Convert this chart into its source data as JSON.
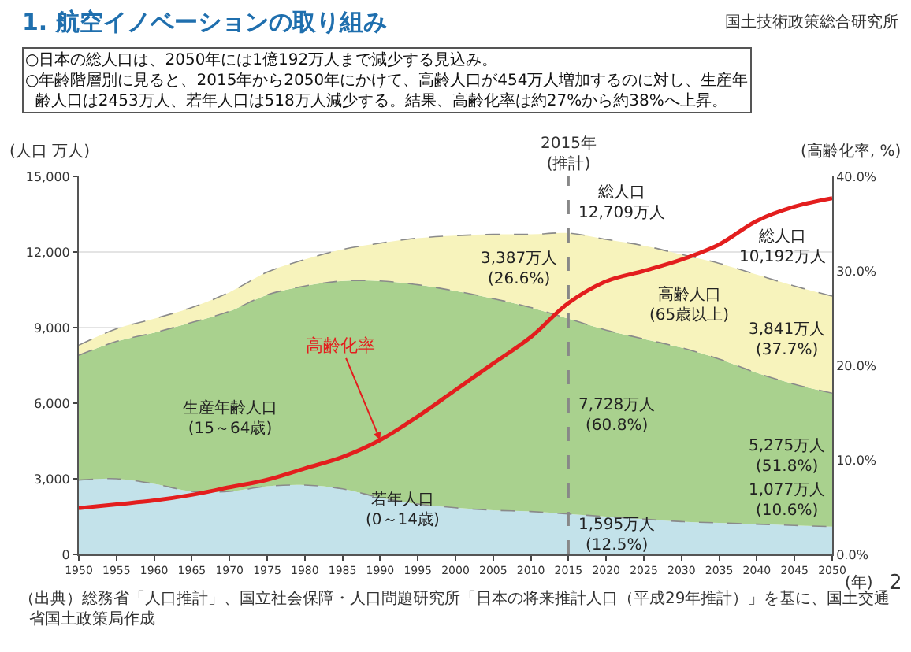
{
  "chart_data": {
    "type": "area",
    "stacked": true,
    "title": "1. 航空イノベーションの取り組み",
    "subtitle": "○日本の総人口は、2050年には1億192万人まで減少する見込み。\n○年齢階層別に見ると、2015年から2050年にかけて、高齢人口が454万人増加するのに対し、生産年齢人口は2453万人、若年人口は518万人減少する。結果、高齢化率は約27%から約38%へ上昇。",
    "ylabel": "(人口 万人)",
    "y2label": "(高齢化率, %)",
    "xlabel": "(年)",
    "x": [
      1950,
      1955,
      1960,
      1965,
      1970,
      1975,
      1980,
      1985,
      1990,
      1995,
      2000,
      2005,
      2010,
      2015,
      2020,
      2025,
      2030,
      2035,
      2040,
      2045,
      2050
    ],
    "series": [
      {
        "name": "若年人口\n(0～14歳)",
        "color": "#c3e2ea",
        "values": [
          2950,
          3000,
          2800,
          2500,
          2500,
          2700,
          2750,
          2600,
          2250,
          2000,
          1850,
          1750,
          1700,
          1600,
          1500,
          1400,
          1300,
          1250,
          1200,
          1150,
          1100
        ]
      },
      {
        "name": "生産年齢人口\n(15～64歳)",
        "color": "#a9d18e",
        "values": [
          4950,
          5450,
          6000,
          6700,
          7150,
          7600,
          7900,
          8250,
          8600,
          8700,
          8600,
          8400,
          8100,
          7750,
          7400,
          7150,
          6900,
          6500,
          6000,
          5600,
          5300
        ]
      },
      {
        "name": "高齢人口\n(65歳以上)",
        "color": "#f7f3bc",
        "values": [
          400,
          500,
          550,
          600,
          750,
          900,
          1050,
          1250,
          1500,
          1850,
          2200,
          2550,
          2900,
          3400,
          3600,
          3700,
          3700,
          3800,
          3900,
          3900,
          3850
        ]
      },
      {
        "name": "高齢化率",
        "type": "line",
        "axis": "y2",
        "color": "#e31e1e",
        "values": [
          4.9,
          5.3,
          5.7,
          6.3,
          7.1,
          7.9,
          9.1,
          10.3,
          12.1,
          14.6,
          17.4,
          20.2,
          23.0,
          26.6,
          28.9,
          30.0,
          31.2,
          32.8,
          35.3,
          36.8,
          37.7
        ]
      }
    ],
    "xlim": [
      1950,
      2050
    ],
    "xticks": [
      1950,
      1955,
      1960,
      1965,
      1970,
      1975,
      1980,
      1985,
      1990,
      1995,
      2000,
      2005,
      2010,
      2015,
      2020,
      2025,
      2030,
      2035,
      2040,
      2045,
      2050
    ],
    "ylim": [
      0,
      15000
    ],
    "yticks": [
      0,
      {
        "value": 3000,
        "label": "3,000"
      },
      {
        "value": 6000,
        "label": "6,000"
      },
      {
        "value": 9000,
        "label": "9,000"
      },
      {
        "value": 12000,
        "label": "12,000"
      },
      {
        "value": 15000,
        "label": "15,000"
      }
    ],
    "y2lim": [
      0,
      40
    ],
    "y2ticks": [
      {
        "value": 0,
        "label": "0.0%"
      },
      {
        "value": 10,
        "label": "10.0%"
      },
      {
        "value": 20,
        "label": "20.0%"
      },
      {
        "value": 30,
        "label": "30.0%"
      },
      {
        "value": 40,
        "label": "40.0%"
      }
    ],
    "grid": "y",
    "ref_lines": [
      {
        "axis": "x",
        "value": 2015,
        "label": "2015年\n(推計)",
        "color": "#888888",
        "line_style": "dashed"
      }
    ],
    "annotations": [
      "総人口\n12,709万人",
      "3,387万人\n(26.6%)",
      "7,728万人\n(60.8%)",
      "1,595万人\n(12.5%)",
      "総人口\n10,192万人",
      "3,841万人\n(37.7%)",
      "5,275万人\n(51.8%)",
      "1,077万人\n(10.6%)",
      "国土技術政策総合研究所",
      "（出典）総務省「人口推計」、国立社会保障・人口問題研究所「日本の将来推計人口（平成29年推計）」を基に、国土交通省国土政策局作成",
      "2"
    ]
  }
}
